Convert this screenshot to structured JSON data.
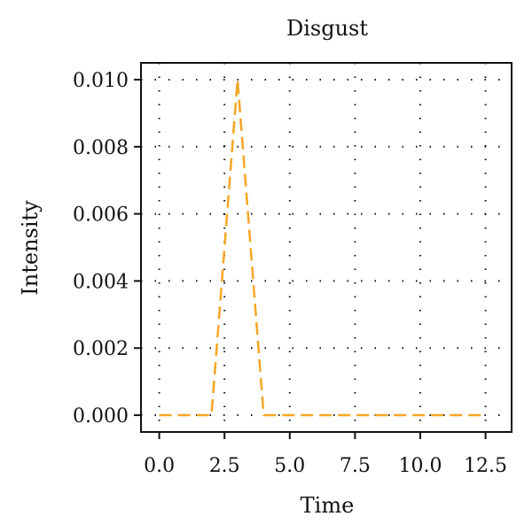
{
  "chart_data": {
    "type": "line",
    "title": "Disgust",
    "xlabel": "Time",
    "ylabel": "Intensity",
    "xlim": [
      -0.7,
      13.5
    ],
    "ylim": [
      -0.0005,
      0.0105
    ],
    "xticks": [
      0.0,
      2.5,
      5.0,
      7.5,
      10.0,
      12.5
    ],
    "xtick_labels": [
      "0.0",
      "2.5",
      "5.0",
      "7.5",
      "10.0",
      "12.5"
    ],
    "yticks": [
      0.0,
      0.002,
      0.004,
      0.006,
      0.008,
      0.01
    ],
    "ytick_labels": [
      "0.000",
      "0.002",
      "0.004",
      "0.006",
      "0.008",
      "0.010"
    ],
    "grid": true,
    "series": [
      {
        "color": "#f5a623",
        "line_style": "dashed",
        "x": [
          0,
          1,
          2,
          3,
          4,
          5,
          6,
          7,
          8,
          9,
          10,
          11,
          12,
          12.5
        ],
        "y": [
          0.0,
          0.0,
          0.0,
          0.01,
          0.0,
          0.0,
          0.0,
          0.0,
          0.0,
          0.0,
          0.0,
          0.0,
          0.0,
          0.0
        ]
      }
    ]
  }
}
